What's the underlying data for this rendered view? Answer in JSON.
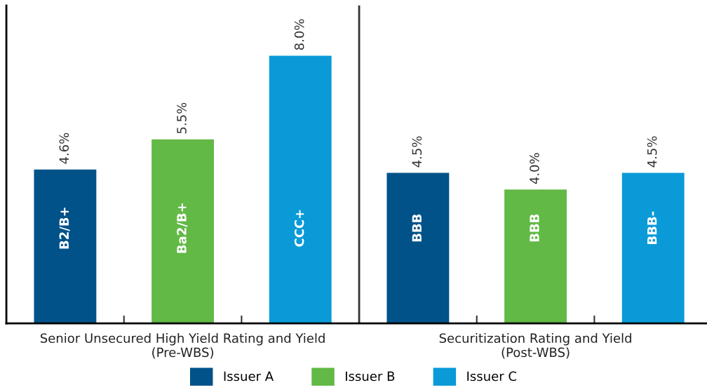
{
  "chart_data": {
    "type": "bar",
    "relative": false,
    "categories": [
      "Senior Unsecured High Yield Rating and Yield\n(Pre-WBS)",
      "Securitization Rating and Yield\n(Post-WBS)"
    ],
    "series": [
      {
        "name": "Issuer A",
        "color": "#005289",
        "values": [
          4.6,
          4.5
        ],
        "value_labels": [
          "4.6%",
          "4.5%"
        ]
      },
      {
        "name": "Issuer B",
        "color": "#62b946",
        "values": [
          5.5,
          4.0
        ],
        "value_labels": [
          "5.5%",
          "4.0%"
        ]
      },
      {
        "name": "Issuer C",
        "color": "#0a9ad8",
        "values": [
          8.0,
          4.5
        ],
        "value_labels": [
          "8.0%",
          "4.5%"
        ]
      }
    ],
    "annotations": [
      "B2/B+",
      "Ba2/B+",
      "CCC+",
      "BBB",
      "BBB",
      "BBB-"
    ],
    "ylim": [
      0,
      9.5
    ],
    "tick_labels": "x",
    "grid": false,
    "legend": "bottom"
  }
}
